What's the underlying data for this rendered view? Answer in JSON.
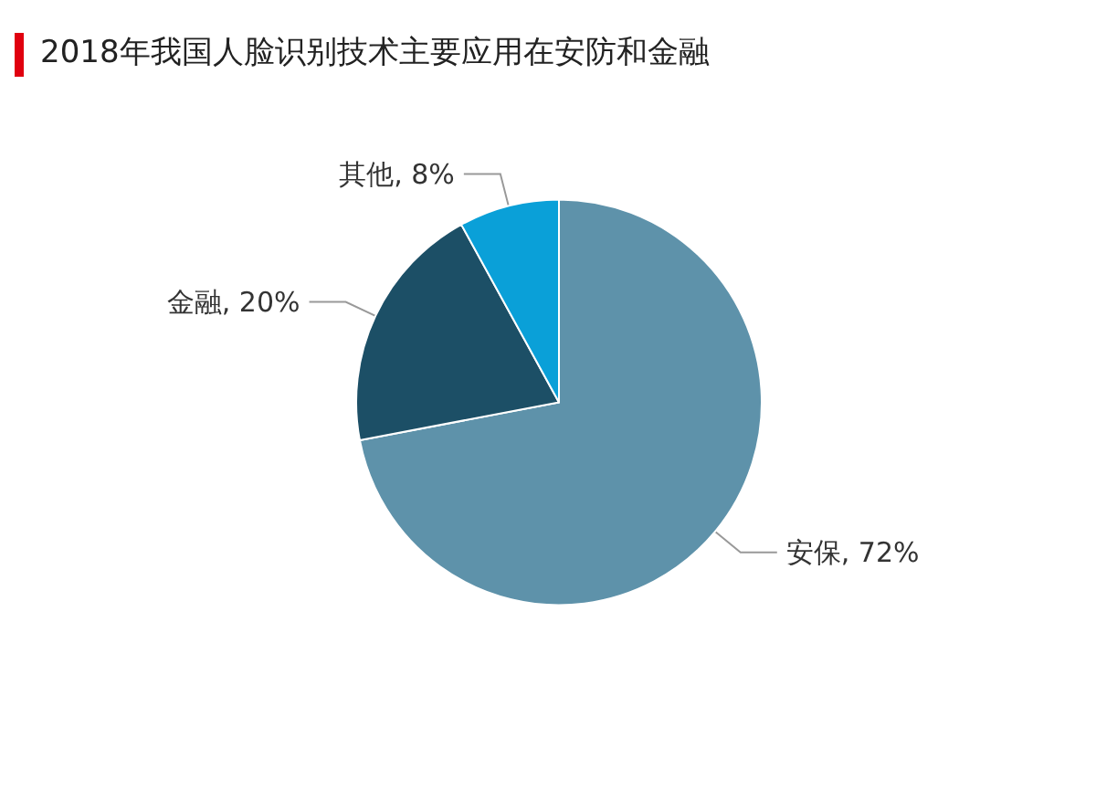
{
  "chart_data": {
    "type": "pie",
    "title": "2018年我国人脸识别技术主要应用在安防和金融",
    "categories": [
      "安保",
      "金融",
      "其他"
    ],
    "values": [
      72,
      20,
      8
    ],
    "value_labels": [
      "72%",
      "20%",
      "8%"
    ],
    "colors": [
      "#5e92aa",
      "#1c4f66",
      "#0aa0d8"
    ],
    "legend": false
  }
}
